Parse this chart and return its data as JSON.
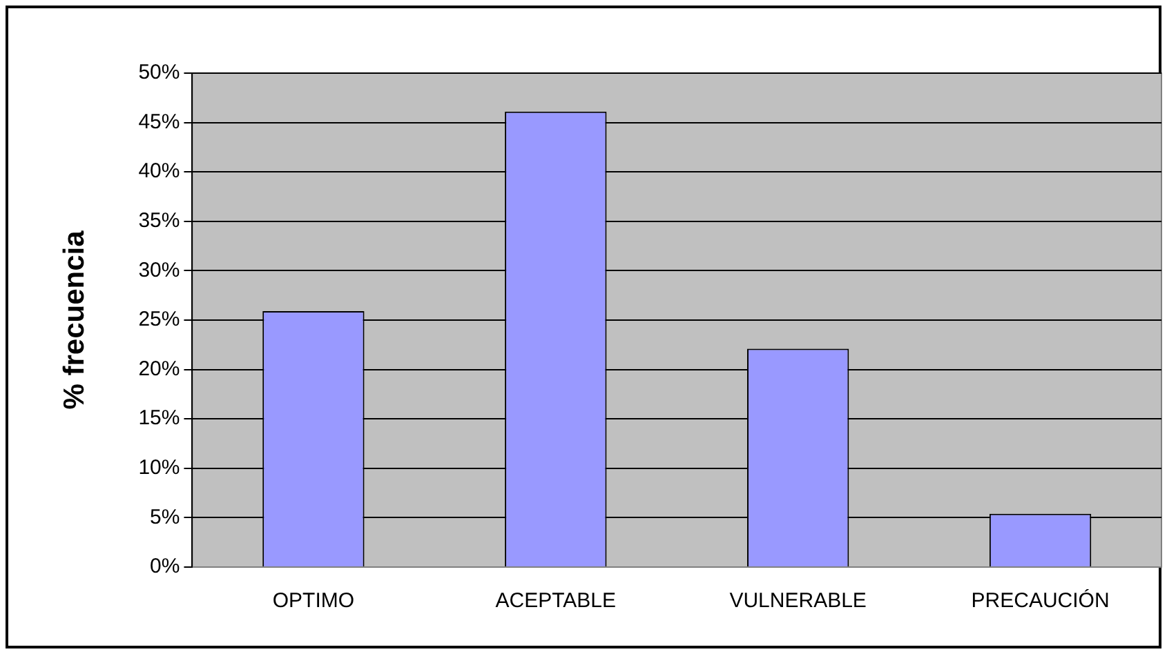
{
  "chart_data": {
    "type": "bar",
    "ylabel": "% frecuencia",
    "categories": [
      "OPTIMO",
      "ACEPTABLE",
      "VULNERABLE",
      "PRECAUCIÓN"
    ],
    "values": [
      25.9,
      46.1,
      22.1,
      5.4
    ],
    "color": "#9999ff",
    "ylim": [
      0,
      50
    ],
    "yticks": [
      {
        "value": 0,
        "label": "0%"
      },
      {
        "value": 5,
        "label": "5%"
      },
      {
        "value": 10,
        "label": "10%"
      },
      {
        "value": 15,
        "label": "15%"
      },
      {
        "value": 20,
        "label": "20%"
      },
      {
        "value": 25,
        "label": "25%"
      },
      {
        "value": 30,
        "label": "30%"
      },
      {
        "value": 35,
        "label": "35%"
      },
      {
        "value": 40,
        "label": "40%"
      },
      {
        "value": 45,
        "label": "45%"
      },
      {
        "value": 50,
        "label": "50%"
      }
    ],
    "grid": "y",
    "legend": false
  }
}
